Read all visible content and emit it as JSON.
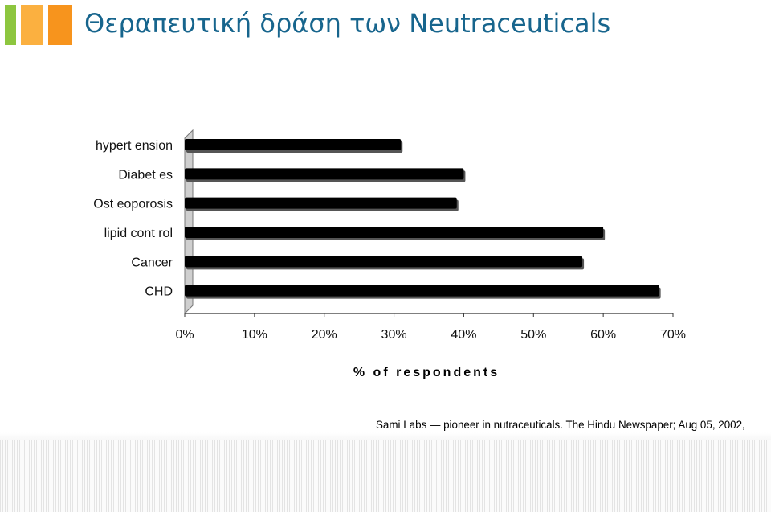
{
  "slide": {
    "title": "Θεραπευτική δράση των Neutraceuticals",
    "caption": "Sami Labs — pioneer in nutraceuticals. The Hindu Newspaper; Aug 05, 2002,",
    "logo_colors": [
      "#8dc63f",
      "#fbb040",
      "#f7941d"
    ],
    "title_color": "#17658d"
  },
  "chart_data": {
    "type": "bar",
    "orientation": "horizontal",
    "categories": [
      "hypertension",
      "Diabetes",
      "Osteoporosis",
      "lipid control",
      "Cancer",
      "CHD"
    ],
    "category_labels": [
      "hypert ension",
      "Diabet es",
      "Ost eoporosis",
      "lipid cont rol",
      "Cancer",
      "CHD"
    ],
    "values": [
      31,
      40,
      39,
      60,
      57,
      68
    ],
    "xlim": [
      0,
      70
    ],
    "xticks": [
      "0%",
      "10%",
      "20%",
      "30%",
      "40%",
      "50%",
      "60%",
      "70%"
    ],
    "xlabel": "% of respondents",
    "ylabel": "",
    "title": "",
    "bar_color": "#000000",
    "grid": false
  }
}
